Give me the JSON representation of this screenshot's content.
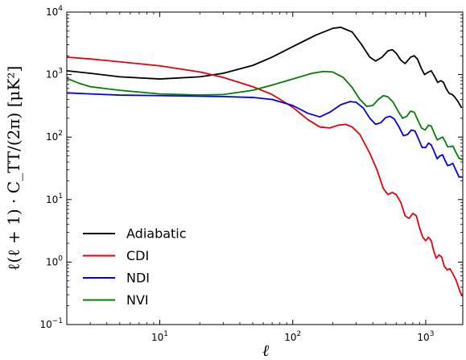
{
  "chart_data": {
    "type": "line",
    "xscale": "log",
    "yscale": "log",
    "xlabel": "ℓ",
    "ylabel": "ℓ(ℓ + 1) · C_TT/(2π) [μK²]",
    "xlim": [
      2,
      1900
    ],
    "ylim": [
      0.1,
      10000
    ],
    "x_ticks": [
      {
        "value": 10,
        "base": "10",
        "exp": "1"
      },
      {
        "value": 100,
        "base": "10",
        "exp": "2"
      },
      {
        "value": 1000,
        "base": "10",
        "exp": "3"
      }
    ],
    "y_ticks": [
      {
        "value": 0.1,
        "base": "10",
        "exp": "−1"
      },
      {
        "value": 1,
        "base": "10",
        "exp": "0"
      },
      {
        "value": 10,
        "base": "10",
        "exp": "1"
      },
      {
        "value": 100,
        "base": "10",
        "exp": "2"
      },
      {
        "value": 1000,
        "base": "10",
        "exp": "3"
      },
      {
        "value": 10000,
        "base": "10",
        "exp": "4"
      }
    ],
    "legend_position": "lower-left",
    "series": [
      {
        "name": "Adiabatic",
        "color": "#000000",
        "points": [
          [
            2,
            1150
          ],
          [
            3,
            1050
          ],
          [
            5,
            920
          ],
          [
            10,
            850
          ],
          [
            20,
            920
          ],
          [
            30,
            1050
          ],
          [
            50,
            1400
          ],
          [
            70,
            1900
          ],
          [
            100,
            2800
          ],
          [
            150,
            4300
          ],
          [
            200,
            5500
          ],
          [
            230,
            5700
          ],
          [
            280,
            4800
          ],
          [
            330,
            3000
          ],
          [
            380,
            1900
          ],
          [
            420,
            1650
          ],
          [
            470,
            1900
          ],
          [
            520,
            2400
          ],
          [
            560,
            2500
          ],
          [
            600,
            2200
          ],
          [
            650,
            1700
          ],
          [
            700,
            1500
          ],
          [
            770,
            1900
          ],
          [
            820,
            2000
          ],
          [
            870,
            1750
          ],
          [
            920,
            1300
          ],
          [
            980,
            1000
          ],
          [
            1050,
            1100
          ],
          [
            1100,
            1150
          ],
          [
            1160,
            950
          ],
          [
            1230,
            750
          ],
          [
            1300,
            800
          ],
          [
            1360,
            750
          ],
          [
            1430,
            590
          ],
          [
            1500,
            500
          ],
          [
            1580,
            480
          ],
          [
            1650,
            440
          ],
          [
            1750,
            370
          ],
          [
            1850,
            300
          ]
        ]
      },
      {
        "name": "CDI",
        "color": "#e8000b",
        "points": [
          [
            2,
            1900
          ],
          [
            3,
            1780
          ],
          [
            5,
            1600
          ],
          [
            10,
            1380
          ],
          [
            20,
            1100
          ],
          [
            30,
            900
          ],
          [
            50,
            640
          ],
          [
            70,
            480
          ],
          [
            100,
            300
          ],
          [
            130,
            190
          ],
          [
            160,
            145
          ],
          [
            190,
            140
          ],
          [
            220,
            155
          ],
          [
            250,
            160
          ],
          [
            280,
            145
          ],
          [
            320,
            110
          ],
          [
            380,
            55
          ],
          [
            430,
            30
          ],
          [
            480,
            15
          ],
          [
            520,
            12
          ],
          [
            560,
            13
          ],
          [
            600,
            12
          ],
          [
            650,
            9
          ],
          [
            700,
            5.5
          ],
          [
            750,
            5
          ],
          [
            800,
            6
          ],
          [
            850,
            5.5
          ],
          [
            900,
            3.5
          ],
          [
            950,
            2.5
          ],
          [
            1000,
            2.2
          ],
          [
            1050,
            2.5
          ],
          [
            1100,
            2.2
          ],
          [
            1150,
            1.5
          ],
          [
            1200,
            1.15
          ],
          [
            1260,
            1.3
          ],
          [
            1320,
            1.2
          ],
          [
            1380,
            0.85
          ],
          [
            1450,
            0.75
          ],
          [
            1520,
            0.78
          ],
          [
            1600,
            0.65
          ],
          [
            1700,
            0.5
          ],
          [
            1800,
            0.35
          ],
          [
            1870,
            0.29
          ]
        ]
      },
      {
        "name": "NDI",
        "color": "#0000ee",
        "points": [
          [
            2,
            510
          ],
          [
            3,
            490
          ],
          [
            5,
            470
          ],
          [
            10,
            460
          ],
          [
            20,
            450
          ],
          [
            30,
            445
          ],
          [
            50,
            430
          ],
          [
            70,
            400
          ],
          [
            100,
            320
          ],
          [
            130,
            240
          ],
          [
            160,
            210
          ],
          [
            190,
            250
          ],
          [
            230,
            330
          ],
          [
            270,
            370
          ],
          [
            300,
            360
          ],
          [
            340,
            290
          ],
          [
            380,
            200
          ],
          [
            420,
            160
          ],
          [
            460,
            170
          ],
          [
            500,
            205
          ],
          [
            540,
            215
          ],
          [
            580,
            195
          ],
          [
            630,
            145
          ],
          [
            680,
            105
          ],
          [
            730,
            110
          ],
          [
            780,
            130
          ],
          [
            830,
            125
          ],
          [
            880,
            95
          ],
          [
            940,
            68
          ],
          [
            1000,
            68
          ],
          [
            1050,
            80
          ],
          [
            1100,
            75
          ],
          [
            1160,
            58
          ],
          [
            1220,
            45
          ],
          [
            1280,
            50
          ],
          [
            1340,
            52
          ],
          [
            1400,
            42
          ],
          [
            1460,
            35
          ],
          [
            1530,
            36
          ],
          [
            1600,
            38
          ],
          [
            1680,
            30
          ],
          [
            1780,
            23
          ],
          [
            1870,
            23
          ]
        ]
      },
      {
        "name": "NVI",
        "color": "#008000",
        "points": [
          [
            2,
            870
          ],
          [
            2.5,
            720
          ],
          [
            3,
            640
          ],
          [
            5,
            560
          ],
          [
            10,
            490
          ],
          [
            20,
            470
          ],
          [
            30,
            480
          ],
          [
            50,
            560
          ],
          [
            70,
            680
          ],
          [
            100,
            850
          ],
          [
            140,
            1050
          ],
          [
            170,
            1120
          ],
          [
            200,
            1100
          ],
          [
            240,
            900
          ],
          [
            280,
            620
          ],
          [
            320,
            400
          ],
          [
            360,
            310
          ],
          [
            400,
            320
          ],
          [
            440,
            400
          ],
          [
            480,
            460
          ],
          [
            520,
            440
          ],
          [
            570,
            360
          ],
          [
            620,
            260
          ],
          [
            670,
            200
          ],
          [
            720,
            215
          ],
          [
            770,
            260
          ],
          [
            820,
            250
          ],
          [
            870,
            190
          ],
          [
            930,
            140
          ],
          [
            990,
            130
          ],
          [
            1050,
            155
          ],
          [
            1100,
            150
          ],
          [
            1160,
            115
          ],
          [
            1220,
            90
          ],
          [
            1280,
            95
          ],
          [
            1340,
            100
          ],
          [
            1400,
            85
          ],
          [
            1460,
            70
          ],
          [
            1530,
            70
          ],
          [
            1600,
            72
          ],
          [
            1680,
            58
          ],
          [
            1780,
            46
          ],
          [
            1870,
            44
          ]
        ]
      }
    ]
  }
}
